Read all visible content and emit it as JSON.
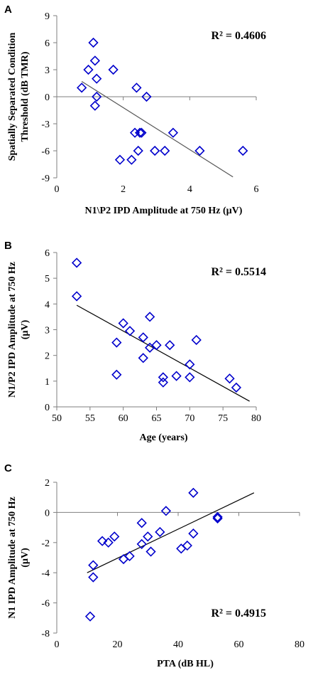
{
  "chart_data": [
    {
      "type": "scatter",
      "panel": "A",
      "xlabel": "N1\\P2 IPD Amplitude at 750 Hz (µV)",
      "ylabel_lines": [
        "Spatially Separated Condition",
        "Threshold (dB TMR)"
      ],
      "xlim": [
        0,
        6
      ],
      "ylim": [
        -9,
        9
      ],
      "xticks": [
        0,
        2,
        4,
        6
      ],
      "yticks": [
        -9,
        -6,
        -3,
        0,
        3,
        6,
        9
      ],
      "grid": false,
      "r2_label": "R² = 0.4606",
      "trendline": {
        "x": [
          0.75,
          5.3
        ],
        "y": [
          1.7,
          -8.9
        ],
        "color": "#555555"
      },
      "points": {
        "x": [
          0.75,
          0.95,
          1.1,
          1.15,
          1.15,
          1.2,
          1.2,
          1.7,
          1.9,
          2.25,
          2.35,
          2.4,
          2.45,
          2.5,
          2.55,
          2.7,
          2.95,
          3.25,
          3.5,
          4.3,
          5.6
        ],
        "y": [
          1,
          3,
          6,
          -1,
          4,
          0,
          2,
          3,
          -7,
          -7,
          -4,
          1,
          -6,
          -4,
          -4,
          0,
          -6,
          -6,
          -4,
          -6,
          -6
        ]
      },
      "marker_color": "#0000cc"
    },
    {
      "type": "scatter",
      "panel": "B",
      "xlabel": "Age (years)",
      "ylabel_lines": [
        "N1/P2 IPD Amplitude at 750 Hz",
        "(µV)"
      ],
      "xlim": [
        50,
        80
      ],
      "ylim": [
        0,
        6
      ],
      "xticks": [
        50,
        55,
        60,
        65,
        70,
        75,
        80
      ],
      "yticks": [
        0,
        1,
        2,
        3,
        4,
        5,
        6
      ],
      "grid": false,
      "r2_label": "R² = 0.5514",
      "trendline": {
        "x": [
          53,
          79
        ],
        "y": [
          3.95,
          0.22
        ],
        "color": "#000000"
      },
      "points": {
        "x": [
          53,
          53,
          59,
          59,
          60,
          61,
          63,
          63,
          64,
          64,
          65,
          66,
          66,
          67,
          68,
          70,
          70,
          71,
          76,
          77
        ],
        "y": [
          5.6,
          4.3,
          2.5,
          1.25,
          3.25,
          2.95,
          2.7,
          1.9,
          3.5,
          2.3,
          2.4,
          1.15,
          0.95,
          2.4,
          1.2,
          1.65,
          1.15,
          2.6,
          1.1,
          0.75
        ]
      },
      "marker_color": "#0000cc"
    },
    {
      "type": "scatter",
      "panel": "C",
      "xlabel": "PTA (dB HL)",
      "ylabel_lines": [
        "N1 IPD Amplitude at 750 Hz",
        "(µV)"
      ],
      "xlim": [
        0,
        80
      ],
      "ylim": [
        -8,
        2
      ],
      "xticks": [
        0,
        20,
        40,
        60,
        80
      ],
      "yticks": [
        -8,
        -6,
        -4,
        -2,
        0,
        2
      ],
      "grid": false,
      "r2_label": "R² = 0.4915",
      "trendline": {
        "x": [
          10,
          65
        ],
        "y": [
          -4.0,
          1.3
        ],
        "color": "#000000"
      },
      "points": {
        "x": [
          11,
          12,
          12,
          15,
          17,
          19,
          22,
          24,
          28,
          28,
          30,
          31,
          34,
          36,
          41,
          43,
          45,
          45,
          53,
          53
        ],
        "y": [
          -6.9,
          -3.5,
          -4.3,
          -1.9,
          -2.0,
          -1.6,
          -3.1,
          -2.9,
          -2.1,
          -0.7,
          -1.6,
          -2.6,
          -1.3,
          0.1,
          -2.4,
          -2.2,
          1.3,
          -1.4,
          -0.3,
          -0.4
        ]
      },
      "marker_color": "#0000cc"
    }
  ]
}
